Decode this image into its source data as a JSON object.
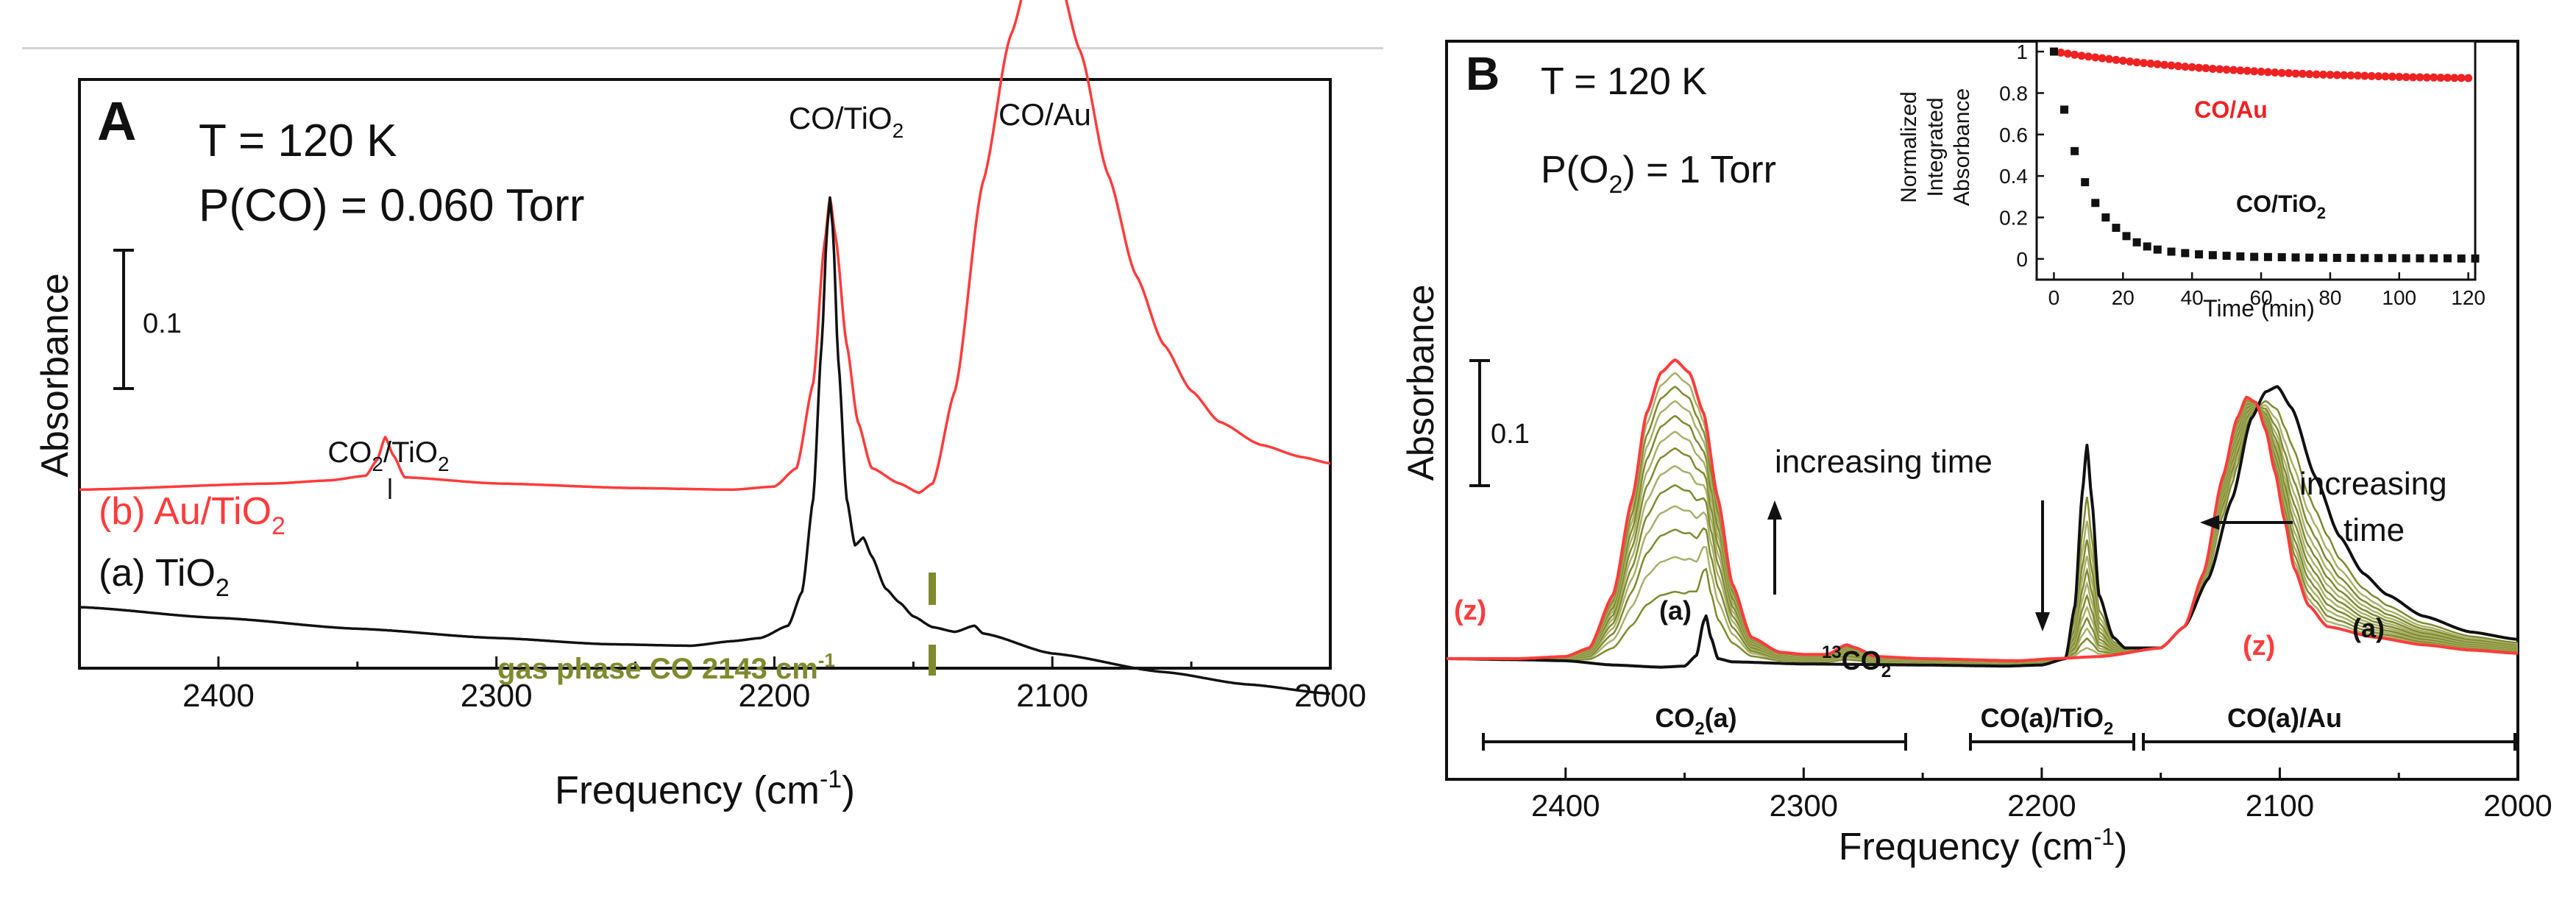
{
  "colors": {
    "black": "#111111",
    "red": "#ff3b3b",
    "olive": "#7f8a2e",
    "olive_light": "#a9b06a",
    "red_marker": "#ee2222"
  },
  "panel_a": {
    "letter": "A",
    "temperature": "T = 120 K",
    "pressure": "P(CO) = 0.060 Torr",
    "ylabel": "Absorbance",
    "scale_label": "0.1",
    "xlabel_main": "Frequency (cm",
    "xlabel_sup": "-1",
    "xlabel_end": ")",
    "peak_co_tio2": "CO/TiO",
    "peak_co_tio2_sub": "2",
    "peak_co_au": "CO/Au",
    "peak_co2_tio2_a": "CO",
    "peak_co2_tio2_sub1": "2",
    "peak_co2_tio2_b": "/TiO",
    "peak_co2_tio2_sub2": "2",
    "label_b": "(b) Au/TiO",
    "label_b_sub": "2",
    "label_a": "(a) TiO",
    "label_a_sub": "2",
    "gas_phase": "gas phase CO 2143 cm",
    "gas_phase_sup": "-1"
  },
  "panel_b": {
    "letter": "B",
    "temperature": "T = 120 K",
    "pressure_a": "P(O",
    "pressure_sub": "2",
    "pressure_b": ") = 1 Torr",
    "ylabel": "Absorbance",
    "scale_label": "0.1",
    "xlabel_main": "Frequency (cm",
    "xlabel_sup": "-1",
    "xlabel_end": ")",
    "increasing_time_1": "increasing time",
    "increasing_time_2a": "increasing",
    "increasing_time_2b": "time",
    "label_z1": "(z)",
    "label_z2": "(z)",
    "label_a1": "(a)",
    "label_a2": "(a)",
    "label_13co2_sup": "13",
    "label_13co2": "CO",
    "label_13co2_sub": "2",
    "bracket_co2a_a": "CO",
    "bracket_co2a_sub": "2",
    "bracket_co2a_b": "(a)",
    "bracket_cotio2_a": "CO(a)/TiO",
    "bracket_cotio2_sub": "2",
    "bracket_coau": "CO(a)/Au"
  },
  "inset": {
    "ylabel_1": "Normalized",
    "ylabel_2": "Integrated",
    "ylabel_3": "Absorbance",
    "xlabel": "Time (min)",
    "label_coau": "CO/Au",
    "label_cotio2_a": "CO/TiO",
    "label_cotio2_sub": "2"
  },
  "chart_data": [
    {
      "type": "line",
      "panel": "A",
      "title": "",
      "xlabel": "Frequency (cm-1)",
      "ylabel": "Absorbance",
      "xlim": [
        2450,
        2000
      ],
      "x_ticks": [
        2400,
        2300,
        2200,
        2100,
        2000
      ],
      "y_ticks_shown": false,
      "scale_bar_absorbance": 0.1,
      "series": [
        {
          "name": "(b) Au/TiO2",
          "color": "red",
          "offset": 0.07,
          "points": [
            [
              2450,
              0.006
            ],
            [
              2380,
              0.01
            ],
            [
              2360,
              0.012
            ],
            [
              2347,
              0.015
            ],
            [
              2343,
              0.025
            ],
            [
              2340,
              0.04
            ],
            [
              2337,
              0.028
            ],
            [
              2333,
              0.014
            ],
            [
              2300,
              0.01
            ],
            [
              2250,
              0.007
            ],
            [
              2215,
              0.006
            ],
            [
              2200,
              0.008
            ],
            [
              2192,
              0.02
            ],
            [
              2186,
              0.075
            ],
            [
              2182,
              0.165
            ],
            [
              2180,
              0.195
            ],
            [
              2178,
              0.17
            ],
            [
              2174,
              0.1
            ],
            [
              2170,
              0.05
            ],
            [
              2165,
              0.02
            ],
            [
              2155,
              0.01
            ],
            [
              2148,
              0.004
            ],
            [
              2143,
              0.01
            ],
            [
              2135,
              0.07
            ],
            [
              2125,
              0.205
            ],
            [
              2115,
              0.3
            ],
            [
              2108,
              0.342
            ],
            [
              2103,
              0.35
            ],
            [
              2098,
              0.34
            ],
            [
              2090,
              0.29
            ],
            [
              2080,
              0.21
            ],
            [
              2070,
              0.145
            ],
            [
              2060,
              0.1
            ],
            [
              2050,
              0.07
            ],
            [
              2040,
              0.05
            ],
            [
              2025,
              0.035
            ],
            [
              2010,
              0.027
            ],
            [
              2000,
              0.023
            ]
          ]
        },
        {
          "name": "(a) TiO2",
          "color": "black",
          "offset": 0.0,
          "points": [
            [
              2450,
              0.0
            ],
            [
              2400,
              -0.007
            ],
            [
              2350,
              -0.014
            ],
            [
              2300,
              -0.02
            ],
            [
              2260,
              -0.024
            ],
            [
              2230,
              -0.025
            ],
            [
              2215,
              -0.022
            ],
            [
              2205,
              -0.02
            ],
            [
              2195,
              -0.012
            ],
            [
              2190,
              0.01
            ],
            [
              2186,
              0.07
            ],
            [
              2183,
              0.17
            ],
            [
              2181,
              0.245
            ],
            [
              2180,
              0.265
            ],
            [
              2179,
              0.245
            ],
            [
              2177,
              0.16
            ],
            [
              2174,
              0.07
            ],
            [
              2171,
              0.04
            ],
            [
              2168,
              0.045
            ],
            [
              2165,
              0.033
            ],
            [
              2160,
              0.012
            ],
            [
              2155,
              0.003
            ],
            [
              2150,
              -0.006
            ],
            [
              2143,
              -0.013
            ],
            [
              2135,
              -0.016
            ],
            [
              2128,
              -0.012
            ],
            [
              2125,
              -0.017
            ],
            [
              2100,
              -0.03
            ],
            [
              2060,
              -0.042
            ],
            [
              2030,
              -0.05
            ],
            [
              2000,
              -0.056
            ]
          ]
        }
      ],
      "annotations": [
        "CO/TiO2",
        "CO/Au",
        "CO2/TiO2",
        "gas phase CO 2143 cm-1"
      ],
      "gas_phase_marker_cm1": 2143,
      "conditions": [
        "T = 120 K",
        "P(CO) = 0.060 Torr"
      ]
    },
    {
      "type": "line",
      "panel": "B",
      "title": "",
      "xlabel": "Frequency (cm-1)",
      "ylabel": "Absorbance",
      "xlim": [
        2450,
        2000
      ],
      "x_ticks": [
        2400,
        2300,
        2200,
        2100,
        2000
      ],
      "y_ticks_shown": false,
      "scale_bar_absorbance": 0.1,
      "series": [
        {
          "name": "(a)",
          "color": "black",
          "points": [
            [
              2450,
              0.0
            ],
            [
              2420,
              -0.001
            ],
            [
              2400,
              -0.002
            ],
            [
              2380,
              -0.006
            ],
            [
              2360,
              -0.008
            ],
            [
              2350,
              -0.007
            ],
            [
              2345,
              0.003
            ],
            [
              2342,
              0.035
            ],
            [
              2341,
              0.04
            ],
            [
              2339,
              0.02
            ],
            [
              2336,
              0.0
            ],
            [
              2330,
              -0.003
            ],
            [
              2300,
              -0.005
            ],
            [
              2250,
              -0.006
            ],
            [
              2215,
              -0.007
            ],
            [
              2200,
              -0.006
            ],
            [
              2190,
              0.0
            ],
            [
              2186,
              0.05
            ],
            [
              2183,
              0.155
            ],
            [
              2181,
              0.2
            ],
            [
              2179,
              0.15
            ],
            [
              2176,
              0.06
            ],
            [
              2170,
              0.02
            ],
            [
              2165,
              0.01
            ],
            [
              2150,
              0.01
            ],
            [
              2140,
              0.03
            ],
            [
              2130,
              0.075
            ],
            [
              2120,
              0.15
            ],
            [
              2112,
              0.225
            ],
            [
              2106,
              0.25
            ],
            [
              2101,
              0.255
            ],
            [
              2095,
              0.235
            ],
            [
              2085,
              0.17
            ],
            [
              2075,
              0.115
            ],
            [
              2065,
              0.08
            ],
            [
              2055,
              0.06
            ],
            [
              2040,
              0.04
            ],
            [
              2020,
              0.025
            ],
            [
              2000,
              0.018
            ]
          ]
        },
        {
          "name": "(z)",
          "color": "red",
          "points": [
            [
              2450,
              0.0
            ],
            [
              2420,
              0.0
            ],
            [
              2400,
              0.002
            ],
            [
              2390,
              0.01
            ],
            [
              2380,
              0.06
            ],
            [
              2372,
              0.15
            ],
            [
              2366,
              0.23
            ],
            [
              2360,
              0.268
            ],
            [
              2354,
              0.28
            ],
            [
              2348,
              0.268
            ],
            [
              2342,
              0.23
            ],
            [
              2336,
              0.15
            ],
            [
              2330,
              0.07
            ],
            [
              2322,
              0.02
            ],
            [
              2310,
              0.006
            ],
            [
              2300,
              0.004
            ],
            [
              2290,
              0.004
            ],
            [
              2282,
              0.013
            ],
            [
              2278,
              0.01
            ],
            [
              2270,
              0.002
            ],
            [
              2250,
              0.0
            ],
            [
              2210,
              -0.002
            ],
            [
              2195,
              0.0
            ],
            [
              2175,
              0.002
            ],
            [
              2150,
              0.01
            ],
            [
              2140,
              0.03
            ],
            [
              2132,
              0.08
            ],
            [
              2124,
              0.17
            ],
            [
              2118,
              0.225
            ],
            [
              2114,
              0.245
            ],
            [
              2110,
              0.24
            ],
            [
              2106,
              0.215
            ],
            [
              2102,
              0.175
            ],
            [
              2098,
              0.13
            ],
            [
              2094,
              0.085
            ],
            [
              2088,
              0.05
            ],
            [
              2080,
              0.03
            ],
            [
              2060,
              0.02
            ],
            [
              2040,
              0.013
            ],
            [
              2020,
              0.008
            ],
            [
              2000,
              0.005
            ]
          ]
        }
      ],
      "intermediate_series_count": 12,
      "intermediate_series_color": "olive",
      "annotations": [
        "increasing time",
        "increasing time",
        "13CO2",
        "(a)",
        "(z)"
      ],
      "brackets": [
        {
          "label": "CO2(a)",
          "from_cm1": 2435,
          "to_cm1": 2258
        },
        {
          "label": "CO(a)/TiO2",
          "from_cm1": 2230,
          "to_cm1": 2162
        },
        {
          "label": "CO(a)/Au",
          "from_cm1": 2158,
          "to_cm1": 2003
        }
      ],
      "conditions": [
        "T = 120 K",
        "P(O2) = 1 Torr"
      ]
    },
    {
      "type": "scatter",
      "panel": "B-inset",
      "title": "",
      "xlabel": "Time (min)",
      "ylabel": "Normalized Integrated Absorbance",
      "xlim": [
        -5,
        122
      ],
      "ylim": [
        -0.1,
        1.05
      ],
      "x_ticks": [
        0,
        20,
        40,
        60,
        80,
        100,
        120
      ],
      "y_ticks": [
        0,
        0.2,
        0.4,
        0.6,
        0.8,
        1
      ],
      "series": [
        {
          "name": "CO/Au",
          "color": "red",
          "marker": "circle",
          "x": [
            0,
            2,
            4,
            6,
            8,
            10,
            12,
            14,
            16,
            18,
            20,
            22,
            24,
            26,
            28,
            30,
            32,
            34,
            36,
            38,
            40,
            42,
            44,
            46,
            48,
            50,
            52,
            54,
            56,
            58,
            60,
            62,
            64,
            66,
            68,
            70,
            72,
            74,
            76,
            78,
            80,
            82,
            84,
            86,
            88,
            90,
            92,
            94,
            96,
            98,
            100,
            102,
            104,
            106,
            108,
            110,
            112,
            114,
            116,
            118,
            120
          ],
          "y": [
            1.0,
            0.995,
            0.99,
            0.985,
            0.98,
            0.976,
            0.972,
            0.968,
            0.964,
            0.96,
            0.956,
            0.952,
            0.948,
            0.945,
            0.942,
            0.939,
            0.936,
            0.933,
            0.93,
            0.927,
            0.925,
            0.922,
            0.92,
            0.917,
            0.915,
            0.913,
            0.911,
            0.909,
            0.907,
            0.905,
            0.903,
            0.901,
            0.899,
            0.897,
            0.896,
            0.894,
            0.893,
            0.891,
            0.89,
            0.889,
            0.888,
            0.887,
            0.886,
            0.885,
            0.884,
            0.883,
            0.882,
            0.881,
            0.88,
            0.879,
            0.878,
            0.877,
            0.876,
            0.876,
            0.875,
            0.875,
            0.874,
            0.874,
            0.873,
            0.873,
            0.872
          ]
        },
        {
          "name": "CO/TiO2",
          "color": "black",
          "marker": "square",
          "x": [
            0,
            3,
            6,
            9,
            12,
            15,
            18,
            21,
            24,
            27,
            30,
            34,
            38,
            42,
            46,
            50,
            54,
            58,
            62,
            66,
            70,
            74,
            78,
            82,
            86,
            90,
            94,
            98,
            102,
            106,
            110,
            114,
            118,
            122
          ],
          "y": [
            1.0,
            0.72,
            0.52,
            0.37,
            0.27,
            0.2,
            0.15,
            0.11,
            0.08,
            0.06,
            0.045,
            0.035,
            0.028,
            0.022,
            0.018,
            0.015,
            0.012,
            0.01,
            0.009,
            0.008,
            0.007,
            0.006,
            0.006,
            0.005,
            0.005,
            0.004,
            0.004,
            0.004,
            0.003,
            0.003,
            0.003,
            0.003,
            0.002,
            0.002
          ]
        }
      ]
    }
  ]
}
